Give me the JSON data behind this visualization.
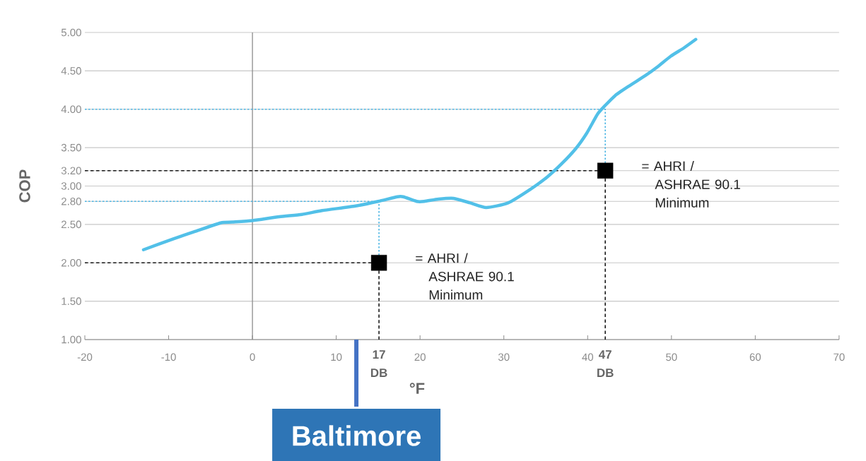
{
  "chart_data": {
    "type": "line",
    "xlabel": "°F",
    "ylabel": "COP",
    "xlim": [
      -20,
      70
    ],
    "ylim": [
      1,
      5
    ],
    "xticks": [
      -20,
      -10,
      0,
      10,
      20,
      30,
      40,
      50,
      60,
      70
    ],
    "yticks": [
      {
        "value": 1,
        "label": "1.00"
      },
      {
        "value": 1.5,
        "label": "1.50"
      },
      {
        "value": 2,
        "label": "2.00"
      },
      {
        "value": 2.5,
        "label": "2.50"
      },
      {
        "value": 2.8,
        "label": "2.80"
      },
      {
        "value": 3,
        "label": "3.00"
      },
      {
        "value": 3.2,
        "label": "3.20"
      },
      {
        "value": 3.5,
        "label": "3.50"
      },
      {
        "value": 4,
        "label": "4.00"
      },
      {
        "value": 4.5,
        "label": "4.50"
      },
      {
        "value": 5,
        "label": "5.00"
      }
    ],
    "grid": "y",
    "ref_lines": [
      {
        "axis": "x",
        "value": 0,
        "color": "#8c8c8c"
      }
    ],
    "series": [
      {
        "color": "#4cb6e4",
        "line_style": "dotted",
        "x": [
          -20,
          42.1,
          42.1
        ],
        "values": [
          4,
          4,
          3.3
        ]
      },
      {
        "color": "#4cb6e4",
        "line_style": "dotted",
        "x": [
          -20,
          15.1,
          15.1
        ],
        "values": [
          2.8,
          2.8,
          2.1
        ]
      },
      {
        "color": "#1a1a1a",
        "line_style": "dashed",
        "x": [
          -20,
          41.2
        ],
        "values": [
          3.2,
          3.2
        ]
      },
      {
        "color": "#1a1a1a",
        "line_style": "dashed",
        "x": [
          42.1,
          42.1
        ],
        "values": [
          3.1,
          1
        ]
      },
      {
        "color": "#1a1a1a",
        "line_style": "dashed",
        "x": [
          -20,
          14.2
        ],
        "values": [
          2,
          2
        ]
      },
      {
        "color": "#1a1a1a",
        "line_style": "dashed",
        "x": [
          15.1,
          15.1
        ],
        "values": [
          1.9,
          1
        ]
      },
      {
        "color": "#52c0e8",
        "line_style": "solid",
        "x": [
          -13,
          -9.5,
          -6.8,
          -3.8,
          -2.4,
          0,
          3.2,
          5.9,
          8.3,
          12.3,
          15,
          17.3,
          18,
          19.6,
          20.5,
          22.2,
          24,
          26,
          27.9,
          30.5,
          33.2,
          35.2,
          36.9,
          38.6,
          39.9,
          41.2,
          42.1,
          43.3,
          44.9,
          46.9,
          48.3,
          49.9,
          51.5,
          52.9
        ],
        "values": [
          2.17,
          2.31,
          2.41,
          2.52,
          2.53,
          2.55,
          2.6,
          2.63,
          2.68,
          2.74,
          2.8,
          2.86,
          2.86,
          2.8,
          2.8,
          2.83,
          2.84,
          2.78,
          2.72,
          2.78,
          2.96,
          3.12,
          3.29,
          3.49,
          3.69,
          3.94,
          4.05,
          4.18,
          4.3,
          4.44,
          4.55,
          4.69,
          4.8,
          4.91
        ]
      },
      {
        "type": "scatter",
        "name": "= AHRI / ASHRAE 90.1 Minimum",
        "color": "#000000",
        "marker": "square",
        "x": [
          15.1
        ],
        "values": [
          2
        ]
      },
      {
        "type": "scatter",
        "name": "= AHRI / ASHRAE 90.1 Minimum",
        "color": "#000000",
        "marker": "square",
        "x": [
          42.1
        ],
        "values": [
          3.2
        ]
      }
    ],
    "annotations": [
      {
        "text": "17 DB",
        "x": 15.1,
        "y": 1
      },
      {
        "text": "47 DB",
        "x": 42.1,
        "y": 1
      },
      "Baltimore"
    ]
  }
}
